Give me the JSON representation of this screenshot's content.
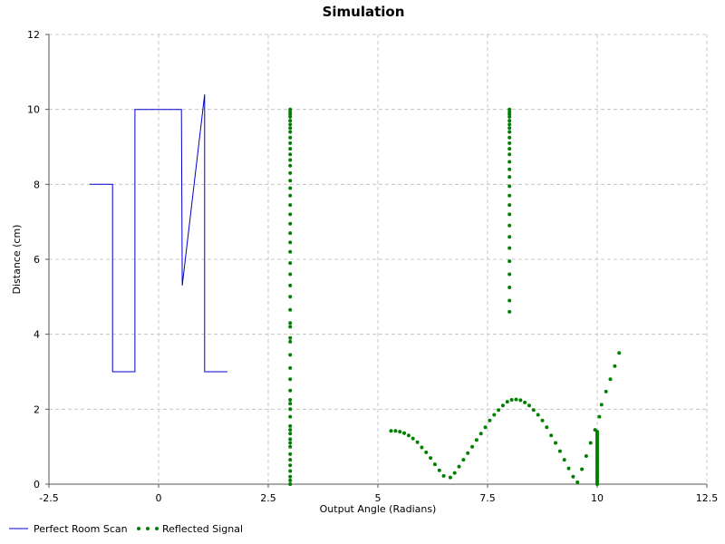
{
  "chart_data": {
    "type": "line",
    "title": "Simulation",
    "xlabel": "Output Angle (Radians)",
    "ylabel": "Distance (cm)",
    "xlim": [
      -2.5,
      12.5
    ],
    "ylim": [
      0,
      12
    ],
    "xticks": [
      "-2.5",
      "0",
      "2.5",
      "5",
      "7.5",
      "10",
      "12.5"
    ],
    "yticks": [
      "0",
      "2",
      "4",
      "6",
      "8",
      "10",
      "12"
    ],
    "grid": true,
    "legend_position": "bottom-left",
    "series": [
      {
        "name": "Perfect Room Scan",
        "style": "line",
        "color": "#0000cc",
        "points": [
          [
            -1.57,
            8.0
          ],
          [
            -1.05,
            8.0
          ],
          [
            -1.05,
            3.0
          ],
          [
            -0.54,
            3.0
          ],
          [
            -0.54,
            10.0
          ],
          [
            0.0,
            10.0
          ],
          [
            0.52,
            10.0
          ],
          [
            0.54,
            5.3
          ],
          [
            1.05,
            10.4
          ],
          [
            1.05,
            3.0
          ],
          [
            1.57,
            3.0
          ]
        ]
      },
      {
        "name": "Reflected Signal",
        "style": "dots",
        "color": "#008000",
        "points": [
          [
            3.0,
            0.0
          ],
          [
            3.0,
            0.1
          ],
          [
            3.0,
            0.2
          ],
          [
            3.0,
            0.35
          ],
          [
            3.0,
            0.5
          ],
          [
            3.0,
            0.65
          ],
          [
            3.0,
            0.8
          ],
          [
            3.0,
            1.0
          ],
          [
            3.0,
            1.1
          ],
          [
            3.0,
            1.2
          ],
          [
            3.0,
            1.35
          ],
          [
            3.0,
            1.45
          ],
          [
            3.0,
            1.55
          ],
          [
            3.0,
            1.8
          ],
          [
            3.0,
            2.0
          ],
          [
            3.0,
            2.15
          ],
          [
            3.0,
            2.25
          ],
          [
            3.0,
            2.5
          ],
          [
            3.0,
            2.8
          ],
          [
            3.0,
            3.1
          ],
          [
            3.0,
            3.45
          ],
          [
            3.0,
            3.8
          ],
          [
            3.0,
            3.9
          ],
          [
            3.0,
            4.2
          ],
          [
            3.0,
            4.3
          ],
          [
            3.0,
            4.65
          ],
          [
            3.0,
            5.0
          ],
          [
            3.0,
            5.3
          ],
          [
            3.0,
            5.6
          ],
          [
            3.0,
            5.9
          ],
          [
            3.0,
            6.2
          ],
          [
            3.0,
            6.45
          ],
          [
            3.0,
            6.7
          ],
          [
            3.0,
            6.95
          ],
          [
            3.0,
            7.2
          ],
          [
            3.0,
            7.45
          ],
          [
            3.0,
            7.7
          ],
          [
            3.0,
            7.9
          ],
          [
            3.0,
            8.1
          ],
          [
            3.0,
            8.3
          ],
          [
            3.0,
            8.5
          ],
          [
            3.0,
            8.65
          ],
          [
            3.0,
            8.8
          ],
          [
            3.0,
            8.95
          ],
          [
            3.0,
            9.1
          ],
          [
            3.0,
            9.25
          ],
          [
            3.0,
            9.4
          ],
          [
            3.0,
            9.5
          ],
          [
            3.0,
            9.6
          ],
          [
            3.0,
            9.7
          ],
          [
            3.0,
            9.8
          ],
          [
            3.0,
            9.87
          ],
          [
            3.0,
            9.93
          ],
          [
            3.0,
            10.0
          ],
          [
            8.0,
            4.6
          ],
          [
            8.0,
            4.9
          ],
          [
            8.0,
            5.25
          ],
          [
            8.0,
            5.6
          ],
          [
            8.0,
            5.95
          ],
          [
            8.0,
            6.3
          ],
          [
            8.0,
            6.6
          ],
          [
            8.0,
            6.9
          ],
          [
            8.0,
            7.2
          ],
          [
            8.0,
            7.45
          ],
          [
            8.0,
            7.7
          ],
          [
            8.0,
            7.95
          ],
          [
            8.0,
            8.2
          ],
          [
            8.0,
            8.4
          ],
          [
            8.0,
            8.6
          ],
          [
            8.0,
            8.8
          ],
          [
            8.0,
            8.95
          ],
          [
            8.0,
            9.1
          ],
          [
            8.0,
            9.25
          ],
          [
            8.0,
            9.4
          ],
          [
            8.0,
            9.5
          ],
          [
            8.0,
            9.6
          ],
          [
            8.0,
            9.7
          ],
          [
            8.0,
            9.8
          ],
          [
            8.0,
            9.87
          ],
          [
            8.0,
            9.93
          ],
          [
            8.0,
            10.0
          ],
          [
            5.3,
            1.42
          ],
          [
            5.4,
            1.42
          ],
          [
            5.5,
            1.4
          ],
          [
            5.6,
            1.36
          ],
          [
            5.7,
            1.3
          ],
          [
            5.8,
            1.22
          ],
          [
            5.9,
            1.12
          ],
          [
            6.0,
            0.98
          ],
          [
            6.1,
            0.85
          ],
          [
            6.2,
            0.7
          ],
          [
            6.3,
            0.53
          ],
          [
            6.4,
            0.37
          ],
          [
            6.5,
            0.22
          ],
          [
            6.65,
            0.18
          ],
          [
            6.75,
            0.3
          ],
          [
            6.85,
            0.47
          ],
          [
            6.95,
            0.65
          ],
          [
            7.05,
            0.83
          ],
          [
            7.15,
            1.0
          ],
          [
            7.25,
            1.18
          ],
          [
            7.35,
            1.35
          ],
          [
            7.45,
            1.52
          ],
          [
            7.55,
            1.7
          ],
          [
            7.65,
            1.85
          ],
          [
            7.75,
            1.98
          ],
          [
            7.85,
            2.1
          ],
          [
            7.95,
            2.2
          ],
          [
            8.05,
            2.25
          ],
          [
            8.15,
            2.26
          ],
          [
            8.25,
            2.24
          ],
          [
            8.35,
            2.18
          ],
          [
            8.45,
            2.1
          ],
          [
            8.55,
            1.98
          ],
          [
            8.65,
            1.85
          ],
          [
            8.75,
            1.7
          ],
          [
            8.85,
            1.52
          ],
          [
            8.95,
            1.3
          ],
          [
            9.05,
            1.1
          ],
          [
            9.15,
            0.88
          ],
          [
            9.25,
            0.65
          ],
          [
            9.35,
            0.42
          ],
          [
            9.45,
            0.2
          ],
          [
            9.55,
            0.05
          ],
          [
            9.65,
            0.4
          ],
          [
            9.75,
            0.75
          ],
          [
            9.85,
            1.1
          ],
          [
            9.95,
            1.45
          ],
          [
            10.05,
            1.8
          ],
          [
            10.1,
            2.12
          ],
          [
            10.2,
            2.47
          ],
          [
            10.3,
            2.8
          ],
          [
            10.4,
            3.15
          ],
          [
            10.5,
            3.5
          ],
          [
            10.0,
            0.0
          ],
          [
            10.0,
            0.05
          ],
          [
            10.0,
            0.1
          ],
          [
            10.0,
            0.15
          ],
          [
            10.0,
            0.2
          ],
          [
            10.0,
            0.25
          ],
          [
            10.0,
            0.3
          ],
          [
            10.0,
            0.35
          ],
          [
            10.0,
            0.4
          ],
          [
            10.0,
            0.45
          ],
          [
            10.0,
            0.5
          ],
          [
            10.0,
            0.55
          ],
          [
            10.0,
            0.6
          ],
          [
            10.0,
            0.65
          ],
          [
            10.0,
            0.7
          ],
          [
            10.0,
            0.75
          ],
          [
            10.0,
            0.8
          ],
          [
            10.0,
            0.85
          ],
          [
            10.0,
            0.9
          ],
          [
            10.0,
            0.95
          ],
          [
            10.0,
            1.0
          ],
          [
            10.0,
            1.05
          ],
          [
            10.0,
            1.1
          ],
          [
            10.0,
            1.15
          ],
          [
            10.0,
            1.2
          ],
          [
            10.0,
            1.25
          ],
          [
            10.0,
            1.3
          ],
          [
            10.0,
            1.35
          ],
          [
            10.0,
            1.4
          ]
        ]
      }
    ]
  }
}
